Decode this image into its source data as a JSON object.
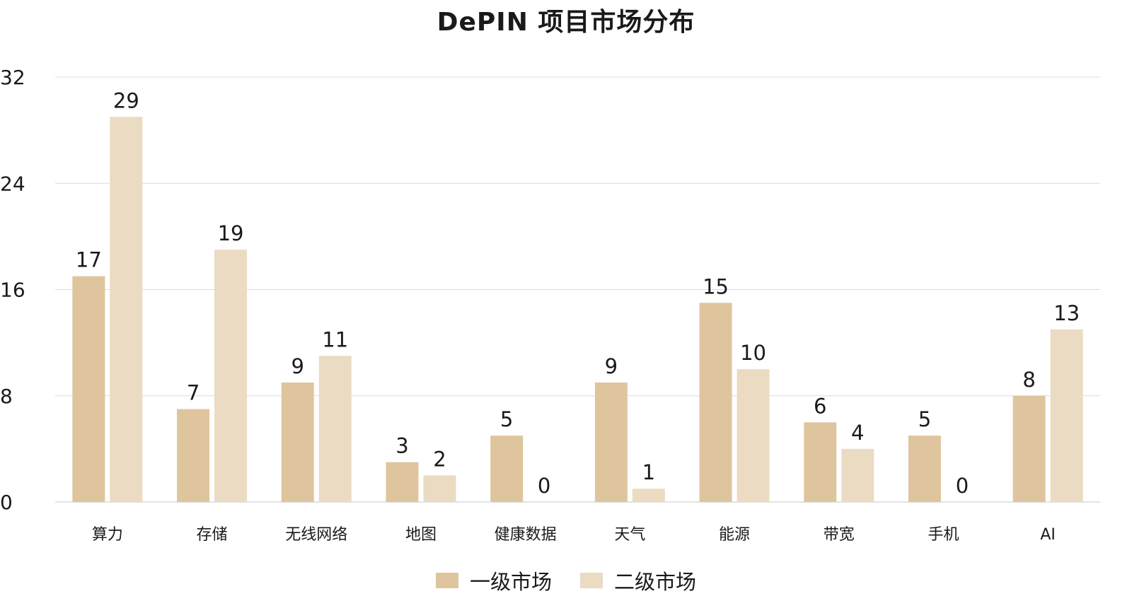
{
  "chart_data": {
    "type": "bar",
    "title": "DePIN 项目市场分布",
    "xlabel": "",
    "ylabel": "",
    "ylim": [
      0,
      32
    ],
    "yticks": [
      0,
      8,
      16,
      24,
      32
    ],
    "grid": true,
    "legend_position": "bottom",
    "categories": [
      "算力",
      "存储",
      "无线网络",
      "地图",
      "健康数据",
      "天气",
      "能源",
      "带宽",
      "手机",
      "AI"
    ],
    "series": [
      {
        "name": "一级市场",
        "color": "#dfc59d",
        "values": [
          17,
          7,
          9,
          3,
          5,
          9,
          15,
          6,
          5,
          8
        ]
      },
      {
        "name": "二级市场",
        "color": "#eadbc2",
        "values": [
          29,
          19,
          11,
          2,
          0,
          1,
          10,
          4,
          0,
          13
        ]
      }
    ]
  }
}
